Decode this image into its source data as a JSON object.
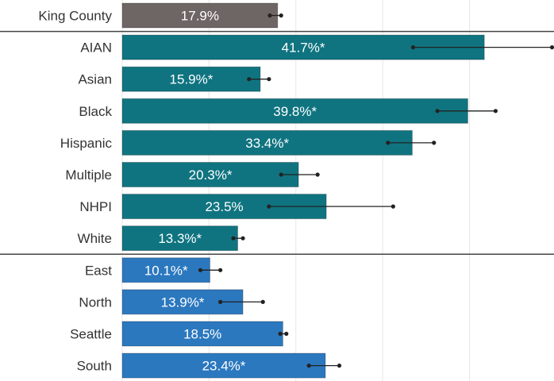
{
  "colors": {
    "overall": "#6e6664",
    "race": "#0f7480",
    "region": "#2b78bf",
    "grid": "#e6e6e6",
    "divider": "#444444",
    "error_bar": "#222222"
  },
  "chart_data": {
    "type": "bar",
    "orientation": "horizontal",
    "xlim": [
      0,
      50
    ],
    "grid": true,
    "categories": [
      "King County",
      "AIAN",
      "Asian",
      "Black",
      "Hispanic",
      "Multiple",
      "NHPI",
      "White",
      "East",
      "North",
      "Seattle",
      "South"
    ],
    "groups": [
      "overall",
      "race",
      "race",
      "race",
      "race",
      "race",
      "race",
      "race",
      "region",
      "region",
      "region",
      "region"
    ],
    "values": [
      17.9,
      41.7,
      15.9,
      39.8,
      33.4,
      20.3,
      23.5,
      13.3,
      10.1,
      13.9,
      18.5,
      23.4
    ],
    "labels": [
      "17.9%",
      "41.7%*",
      "15.9%*",
      "39.8%*",
      "33.4%*",
      "20.3%*",
      "23.5%",
      "13.3%*",
      "10.1%*",
      "13.9%*",
      "18.5%",
      "23.4%*"
    ],
    "ci_lower": [
      17.0,
      33.5,
      14.6,
      36.3,
      30.6,
      18.3,
      16.9,
      12.8,
      9.0,
      11.3,
      18.2,
      21.5
    ],
    "ci_upper": [
      18.3,
      49.5,
      16.9,
      43.0,
      35.9,
      22.5,
      31.2,
      13.9,
      11.3,
      16.2,
      18.9,
      25.0
    ]
  }
}
